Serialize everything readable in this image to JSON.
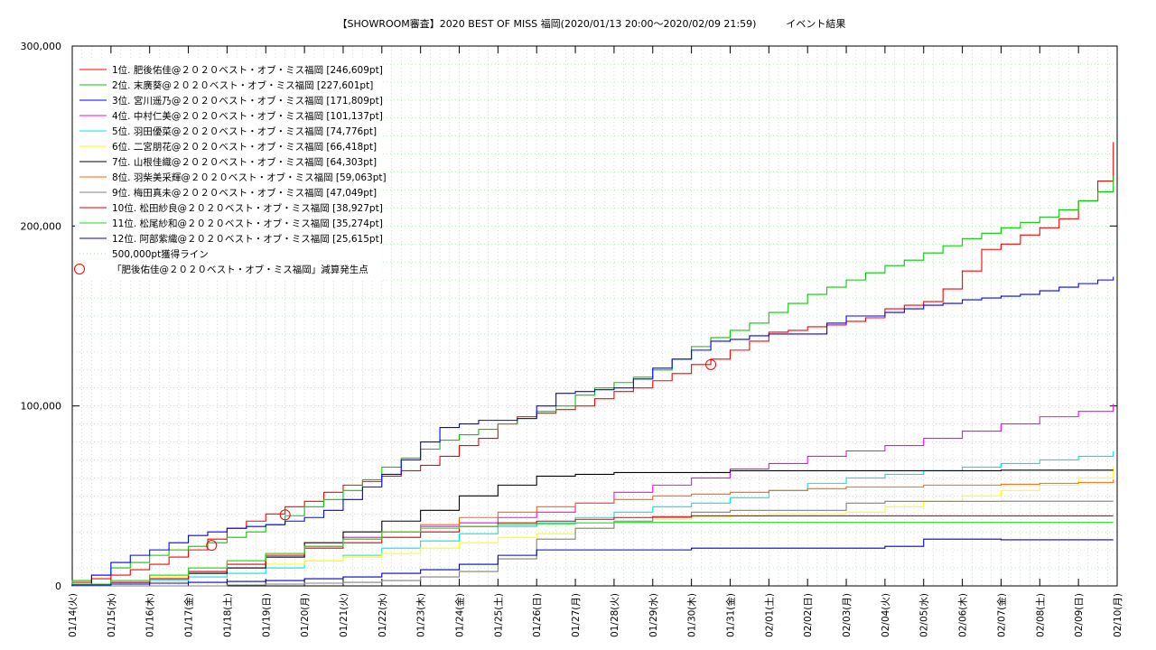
{
  "chart_data": {
    "type": "line",
    "title": "【SHOWROOM審査】2020 BEST OF MISS 福岡(2020/01/13 20:00〜2020/02/09 21:59)　　　イベント結果",
    "ylim": [
      0,
      300000
    ],
    "y_ticks": [
      "0",
      "100,000",
      "200,000",
      "300,000"
    ],
    "y_tick_values": [
      0,
      100000,
      200000,
      300000
    ],
    "x_ticks": [
      "01/14(火)",
      "01/15(水)",
      "01/16(木)",
      "01/17(金)",
      "01/18(土)",
      "01/19(日)",
      "01/20(月)",
      "01/21(火)",
      "01/22(水)",
      "01/23(木)",
      "01/24(金)",
      "01/25(土)",
      "01/26(日)",
      "01/27(月)",
      "01/28(火)",
      "01/29(水)",
      "01/30(木)",
      "01/31(金)",
      "02/01(土)",
      "02/02(日)",
      "02/03(月)",
      "02/04(火)",
      "02/05(水)",
      "02/06(木)",
      "02/07(金)",
      "02/08(土)",
      "02/09(日)",
      "02/10(月)"
    ],
    "x_range_days": [
      0,
      27
    ],
    "grid": true,
    "legend_position": "top-left",
    "series": [
      {
        "name": "1位. 肥後佑佳@２０２０ベスト・オブ・ミス福岡 [246,609pt]",
        "color": "#ff0000",
        "x": [
          0,
          0.5,
          1,
          1.5,
          2,
          2.5,
          3,
          3.5,
          4,
          4.5,
          5,
          5.5,
          6,
          6.5,
          7,
          7.5,
          8,
          8.5,
          9,
          9.5,
          10,
          10.5,
          11,
          11.5,
          12,
          12.5,
          13,
          13.5,
          14,
          14.5,
          15,
          15.5,
          16,
          16.5,
          17,
          17.5,
          18,
          18.5,
          19,
          19.5,
          20,
          20.5,
          21,
          21.5,
          22,
          22.5,
          23,
          23.5,
          24,
          24.5,
          25,
          25.5,
          26,
          26.5,
          26.9
        ],
        "y": [
          2000,
          4000,
          6000,
          9000,
          12000,
          16000,
          20000,
          26000,
          32000,
          36000,
          40000,
          44000,
          47000,
          52000,
          56000,
          58000,
          61000,
          64000,
          67000,
          72000,
          78000,
          82000,
          90000,
          94000,
          96000,
          98000,
          100000,
          104000,
          108000,
          110000,
          114000,
          118000,
          123000,
          126000,
          131000,
          136000,
          141000,
          142000,
          144000,
          145000,
          147000,
          149000,
          154000,
          156000,
          158000,
          165000,
          175000,
          187000,
          190000,
          195000,
          199000,
          204000,
          214000,
          225000,
          246609
        ]
      },
      {
        "name": "2位. 末廣葵@２０２０ベスト・オブ・ミス福岡 [227,601pt]",
        "color": "#00cc00",
        "x": [
          0,
          0.5,
          1,
          1.5,
          2,
          2.5,
          3,
          3.5,
          4,
          4.5,
          5,
          5.5,
          6,
          6.5,
          7,
          7.5,
          8,
          8.5,
          9,
          9.5,
          10,
          10.5,
          11,
          11.5,
          12,
          12.5,
          13,
          13.5,
          14,
          14.5,
          15,
          15.5,
          16,
          16.5,
          17,
          17.5,
          18,
          18.5,
          19,
          19.5,
          20,
          20.5,
          21,
          21.5,
          22,
          22.5,
          23,
          23.5,
          24,
          24.5,
          25,
          25.5,
          26,
          26.5,
          26.9
        ],
        "y": [
          3000,
          6000,
          10000,
          13000,
          17000,
          20000,
          22000,
          24000,
          27000,
          30000,
          34000,
          39000,
          44000,
          48000,
          53000,
          59000,
          66000,
          71000,
          76000,
          81000,
          84000,
          87000,
          90000,
          93000,
          97000,
          100000,
          106000,
          110000,
          113000,
          116000,
          120000,
          126000,
          133000,
          138000,
          142000,
          146000,
          152000,
          157000,
          162000,
          166000,
          170000,
          174000,
          178000,
          181000,
          185000,
          189000,
          193000,
          196000,
          199000,
          202000,
          205000,
          209000,
          214000,
          219000,
          227601
        ]
      },
      {
        "name": "3位. 宮川遥乃@２０２０ベスト・オブ・ミス福岡 [171,809pt]",
        "color": "#0000ff",
        "x": [
          0,
          0.5,
          1,
          1.5,
          2,
          2.5,
          3,
          3.5,
          4,
          4.5,
          5,
          5.5,
          6,
          6.5,
          7,
          7.5,
          8,
          8.5,
          9,
          9.5,
          10,
          10.5,
          11,
          11.5,
          12,
          12.5,
          13,
          13.5,
          14,
          14.5,
          15,
          15.5,
          16,
          16.5,
          17,
          17.5,
          18,
          18.5,
          19,
          19.5,
          20,
          20.5,
          21,
          21.5,
          22,
          22.5,
          23,
          23.5,
          24,
          24.5,
          25,
          25.5,
          26,
          26.5,
          26.9
        ],
        "y": [
          1000,
          6000,
          13000,
          17000,
          20000,
          24000,
          28000,
          30000,
          32000,
          33000,
          34000,
          36000,
          38000,
          42000,
          48000,
          55000,
          62000,
          70000,
          80000,
          88000,
          90000,
          92000,
          92000,
          93000,
          100000,
          107000,
          108000,
          109000,
          110000,
          115000,
          121000,
          126000,
          131000,
          136000,
          137000,
          139000,
          140000,
          140000,
          140000,
          146000,
          150000,
          150000,
          152000,
          154000,
          156000,
          157000,
          159000,
          160000,
          161000,
          162000,
          164000,
          166000,
          168000,
          170000,
          171809
        ]
      },
      {
        "name": "4位. 中村仁美@２０２０ベスト・オブ・ミス福岡 [101,137pt]",
        "color": "#ff00ff",
        "x": [
          0,
          1,
          2,
          3,
          4,
          5,
          6,
          7,
          8,
          9,
          10,
          11,
          12,
          13,
          14,
          15,
          16,
          17,
          18,
          19,
          20,
          21,
          22,
          23,
          24,
          25,
          26,
          26.9
        ],
        "y": [
          1000,
          2000,
          4000,
          7000,
          10000,
          16000,
          22000,
          27000,
          30000,
          33000,
          35000,
          38000,
          41000,
          46000,
          52000,
          56000,
          60000,
          65000,
          68000,
          72000,
          75000,
          78000,
          82000,
          86000,
          90000,
          94000,
          97000,
          101137
        ]
      },
      {
        "name": "5位. 羽田優菜@２０２０ベスト・オブ・ミス福岡 [74,776pt]",
        "color": "#00e5e5",
        "x": [
          0,
          1,
          2,
          3,
          4,
          5,
          6,
          7,
          8,
          9,
          10,
          11,
          12,
          13,
          14,
          15,
          16,
          17,
          18,
          19,
          20,
          21,
          22,
          23,
          24,
          25,
          26,
          26.9
        ],
        "y": [
          500,
          1000,
          3000,
          5000,
          7000,
          10000,
          14000,
          17000,
          21000,
          25000,
          29000,
          33000,
          35000,
          38000,
          41000,
          44000,
          46000,
          49000,
          53000,
          57000,
          60000,
          62000,
          64000,
          66000,
          68000,
          70000,
          72000,
          74776
        ]
      },
      {
        "name": "6位. 二宮朋花@２０２０ベスト・オブ・ミス福岡 [66,418pt]",
        "color": "#ffff00",
        "x": [
          0,
          1,
          2,
          3,
          4,
          5,
          6,
          7,
          8,
          9,
          10,
          11,
          12,
          13,
          14,
          15,
          16,
          17,
          18,
          19,
          20,
          21,
          22,
          23,
          24,
          25,
          26,
          26.9
        ],
        "y": [
          500,
          2000,
          5000,
          8000,
          10000,
          12000,
          14000,
          16000,
          18000,
          21000,
          24000,
          27000,
          29000,
          32000,
          35000,
          37000,
          38000,
          39000,
          40000,
          40000,
          41000,
          44000,
          47000,
          50000,
          53000,
          56000,
          60000,
          66418
        ]
      },
      {
        "name": "7位. 山根佳織@２０２０ベスト・オブ・ミス福岡 [64,303pt]",
        "color": "#000000",
        "x": [
          0,
          1,
          2,
          3,
          4,
          5,
          6,
          7,
          8,
          9,
          10,
          11,
          12,
          13,
          14,
          15,
          16,
          17,
          18,
          19,
          20,
          21,
          22,
          23,
          24,
          25,
          26,
          26.9
        ],
        "y": [
          1000,
          2000,
          4000,
          7000,
          10000,
          16000,
          24000,
          30000,
          36000,
          42000,
          50000,
          56000,
          61000,
          62000,
          63000,
          63000,
          63000,
          64000,
          64000,
          64000,
          64000,
          64000,
          64000,
          64000,
          64303,
          64303,
          64303,
          64303
        ]
      },
      {
        "name": "8位. 羽柴美采輝@２０２０ベスト・オブ・ミス福岡 [59,063pt]",
        "color": "#ff6600",
        "x": [
          0,
          1,
          2,
          3,
          4,
          5,
          6,
          7,
          8,
          9,
          10,
          11,
          12,
          13,
          14,
          15,
          16,
          17,
          18,
          19,
          20,
          21,
          22,
          23,
          24,
          25,
          26,
          26.9
        ],
        "y": [
          1000,
          3000,
          6000,
          10000,
          14000,
          18000,
          22000,
          26000,
          30000,
          34000,
          38000,
          41000,
          44000,
          46000,
          48000,
          50000,
          51000,
          52000,
          53000,
          54000,
          55000,
          55000,
          56000,
          56000,
          56500,
          57000,
          57500,
          59063
        ]
      },
      {
        "name": "9位. 梅田真未@２０２０ベスト・オブ・ミス福岡 [47,049pt]",
        "color": "#808080",
        "x": [
          0,
          1,
          2,
          3,
          4,
          5,
          6,
          7,
          8,
          9,
          10,
          11,
          12,
          13,
          14,
          15,
          16,
          17,
          18,
          19,
          20,
          21,
          22,
          23,
          24,
          25,
          26,
          26.9
        ],
        "y": [
          0,
          0,
          0,
          0,
          500,
          1000,
          1500,
          2000,
          3000,
          5000,
          8000,
          15000,
          26000,
          32000,
          36000,
          38000,
          41000,
          42000,
          42000,
          42000,
          46000,
          47000,
          47000,
          47000,
          47049,
          47049,
          47049,
          47049
        ]
      },
      {
        "name": "10位. 松田紗良@２０２０ベスト・オブ・ミス福岡 [38,927pt]",
        "color": "#e00000",
        "x": [
          0,
          1,
          2,
          3,
          4,
          5,
          6,
          7,
          8,
          9,
          10,
          11,
          12,
          13,
          14,
          15,
          16,
          17,
          18,
          19,
          20,
          21,
          22,
          23,
          24,
          25,
          26,
          26.9
        ],
        "y": [
          1000,
          2000,
          4000,
          8000,
          12000,
          17000,
          21000,
          24000,
          27000,
          30000,
          33000,
          35000,
          36000,
          37000,
          38000,
          38500,
          38927,
          38927,
          38927,
          38927,
          38927,
          38927,
          38927,
          38927,
          38927,
          38927,
          38927,
          38927
        ]
      },
      {
        "name": "11位. 松尾紗和@２０２０ベスト・オブ・ミス福岡 [35,274pt]",
        "color": "#22dd22",
        "x": [
          0,
          1,
          2,
          3,
          4,
          5,
          6,
          7,
          8,
          9,
          10,
          11,
          12,
          13,
          14,
          15,
          16,
          17,
          18,
          19,
          20,
          21,
          22,
          23,
          24,
          25,
          26,
          26.9
        ],
        "y": [
          1000,
          3000,
          6000,
          10000,
          14000,
          18000,
          22000,
          26000,
          30000,
          32000,
          33000,
          34000,
          34500,
          35000,
          35274,
          35274,
          35274,
          35274,
          35274,
          35274,
          35274,
          35274,
          35274,
          35274,
          35274,
          35274,
          35274,
          35274
        ]
      },
      {
        "name": "12位. 阿部紫織@２０２０ベスト・オブ・ミス福岡 [25,615pt]",
        "color": "#0000cc",
        "x": [
          0,
          1,
          2,
          3,
          4,
          5,
          6,
          7,
          8,
          9,
          10,
          11,
          12,
          13,
          14,
          15,
          16,
          17,
          18,
          19,
          20,
          21,
          22,
          23,
          24,
          25,
          26,
          26.9
        ],
        "y": [
          500,
          1000,
          1500,
          2000,
          2500,
          3000,
          4000,
          5000,
          7000,
          9000,
          12000,
          17000,
          20000,
          20000,
          20000,
          20000,
          21000,
          21000,
          21000,
          21000,
          21000,
          22000,
          26000,
          26000,
          25615,
          25615,
          25615,
          25615
        ]
      }
    ],
    "threshold_line": {
      "name": "500,000pt獲得ライン",
      "value": 500000,
      "color": "#99dd99"
    },
    "markers": {
      "name": "「肥後佑佳@２０２０ベスト・オブ・ミス福岡」減算発生点",
      "color": "#ff0000",
      "points": [
        {
          "x": 3.6,
          "y": 22500
        },
        {
          "x": 5.5,
          "y": 39500
        },
        {
          "x": 16.5,
          "y": 123000
        }
      ]
    }
  }
}
